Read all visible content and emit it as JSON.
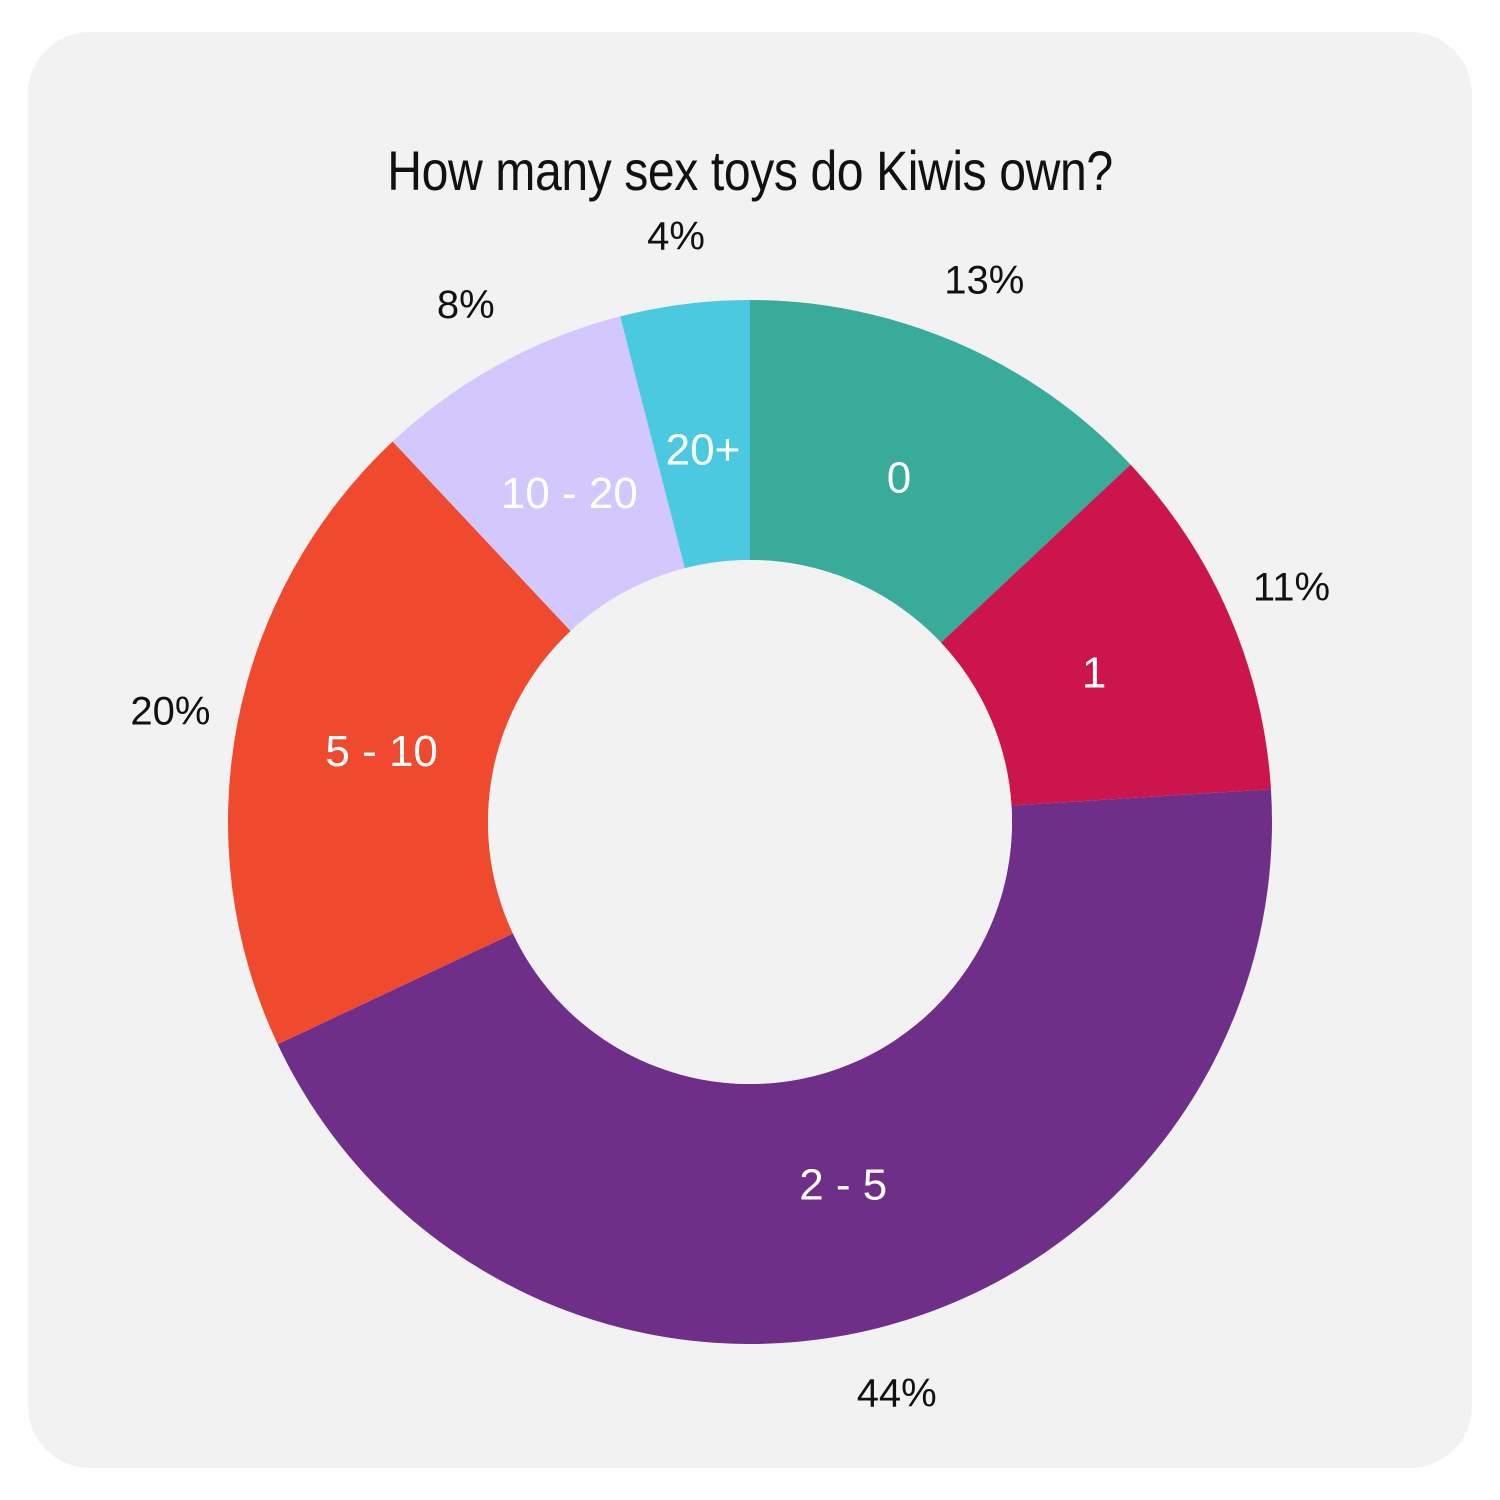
{
  "chart_data": {
    "type": "pie",
    "donut": true,
    "title": "How many sex toys do Kiwis own?",
    "slices": [
      {
        "category": "0",
        "value": 13,
        "value_label": "13%",
        "color": "#38ab9a"
      },
      {
        "category": "1",
        "value": 11,
        "value_label": "11%",
        "color": "#cc164b"
      },
      {
        "category": "2 - 5",
        "value": 44,
        "value_label": "44%",
        "color": "#6f2f88"
      },
      {
        "category": "5 - 10",
        "value": 20,
        "value_label": "20%",
        "color": "#f04a2e"
      },
      {
        "category": "10 - 20",
        "value": 8,
        "value_label": "8%",
        "color": "#d3c8fd"
      },
      {
        "category": "20+",
        "value": 4,
        "value_label": "4%",
        "color": "#4bc9e0"
      }
    ],
    "background_color": "#f3f2f2"
  }
}
